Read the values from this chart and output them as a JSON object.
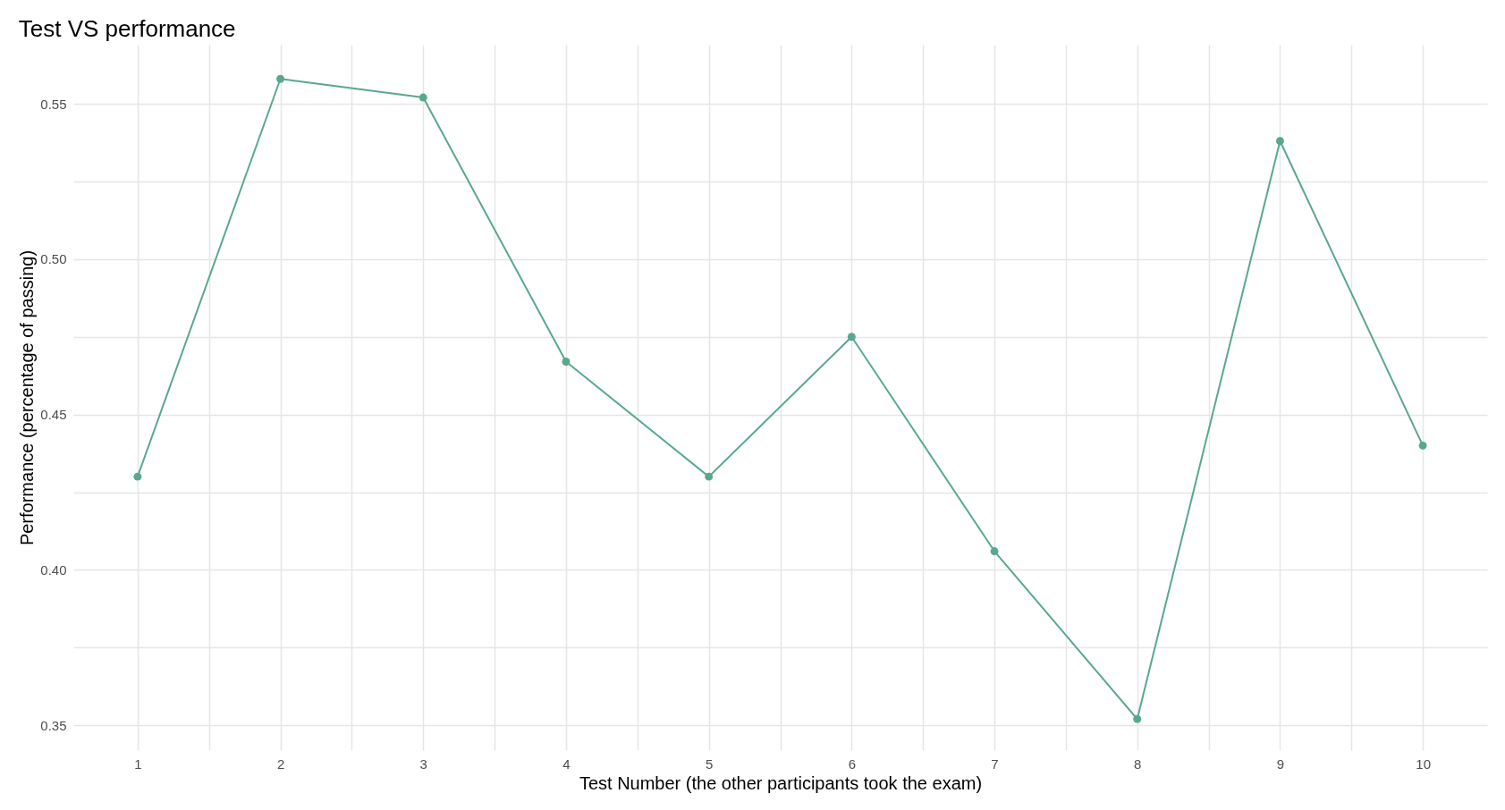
{
  "chart_data": {
    "type": "line",
    "title": "Test VS performance",
    "xlabel": "Test Number (the other participants took the exam)",
    "ylabel": "Performance (percentage of passing)",
    "x": [
      1,
      2,
      3,
      4,
      5,
      6,
      7,
      8,
      9,
      10
    ],
    "series": [
      {
        "color": "#5aa88c",
        "values": [
          0.43,
          0.558,
          0.552,
          0.467,
          0.43,
          0.475,
          0.406,
          0.352,
          0.538,
          0.44
        ]
      }
    ],
    "xlim": [
      0.55,
      10.45
    ],
    "ylim": [
      0.342,
      0.569
    ],
    "xticks": [
      1,
      {
        "value": 1.5,
        "label": null
      },
      2,
      {
        "value": 2.5,
        "label": null
      },
      3,
      {
        "value": 3.5,
        "label": null
      },
      4,
      {
        "value": 4.5,
        "label": null
      },
      5,
      {
        "value": 5.5,
        "label": null
      },
      6,
      {
        "value": 6.5,
        "label": null
      },
      7,
      {
        "value": 7.5,
        "label": null
      },
      8,
      {
        "value": 8.5,
        "label": null
      },
      9,
      {
        "value": 9.5,
        "label": null
      },
      10
    ],
    "yticks": [
      {
        "value": 0.35,
        "label": "0.35"
      },
      {
        "value": 0.375,
        "label": null
      },
      {
        "value": 0.4,
        "label": "0.40"
      },
      {
        "value": 0.425,
        "label": null
      },
      {
        "value": 0.45,
        "label": "0.45"
      },
      {
        "value": 0.475,
        "label": null
      },
      {
        "value": 0.5,
        "label": "0.50"
      },
      {
        "value": 0.525,
        "label": null
      },
      {
        "value": 0.55,
        "label": "0.55"
      }
    ],
    "grid": true,
    "marker": "circle",
    "line_style": "solid"
  }
}
